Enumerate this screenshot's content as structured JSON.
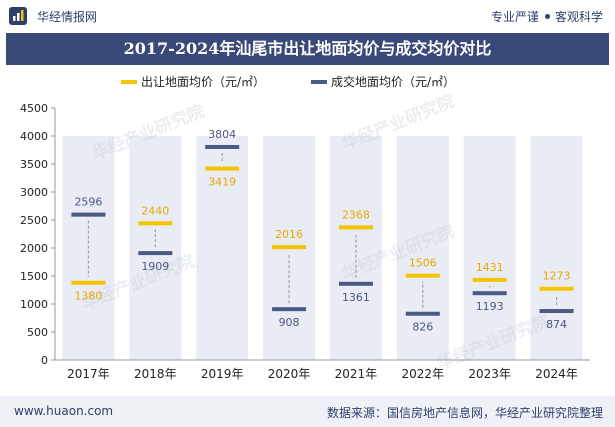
{
  "header": {
    "brand": "华经情报网",
    "tag1": "专业严谨",
    "tag2": "客观科学"
  },
  "title": "2017-2024年汕尾市出让地面均价与成交均价对比",
  "footer": {
    "site": "www.huaon.com",
    "source": "数据来源：国信房地产信息网，华经产业研究院整理"
  },
  "watermark": "华经产业研究院",
  "colors": {
    "series1": "#f5c400",
    "series2": "#4a5a82",
    "band": "#e9ecf4",
    "title_bg": "#3a4a78"
  },
  "chart_data": {
    "type": "floating-marker",
    "categories": [
      "2017年",
      "2018年",
      "2019年",
      "2020年",
      "2021年",
      "2022年",
      "2023年",
      "2024年"
    ],
    "series": [
      {
        "name": "出让地面均价（元/㎡）",
        "values": [
          1380,
          2440,
          3419,
          2016,
          2368,
          1506,
          1431,
          1273
        ]
      },
      {
        "name": "成交地面均价（元/㎡）",
        "values": [
          2596,
          1909,
          3804,
          908,
          1361,
          826,
          1193,
          874
        ]
      }
    ],
    "yticks": [
      0,
      500,
      1000,
      1500,
      2000,
      2500,
      3000,
      3500,
      4000,
      4500
    ],
    "ylim": [
      0,
      4500
    ],
    "legend": "top-center"
  }
}
